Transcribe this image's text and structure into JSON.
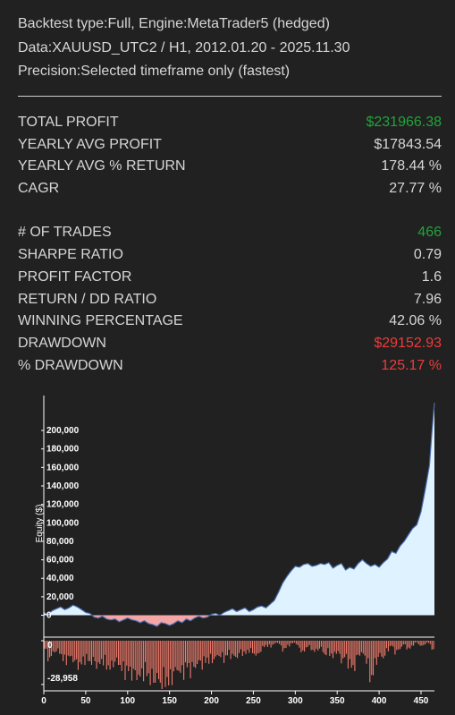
{
  "header": {
    "backtest_line": "Backtest type:Full, Engine:MetaTrader5 (hedged)",
    "data_line": "Data:XAUUSD_UTC2 / H1, 2012.01.20 - 2025.11.30",
    "precision_line": "Precision:Selected timeframe only (fastest)"
  },
  "metrics": {
    "group1": [
      {
        "label": "TOTAL PROFIT",
        "value": "$231966.38",
        "color": "#22a33a"
      },
      {
        "label": "YEARLY AVG PROFIT",
        "value": "$17843.54",
        "color": "#d6d6d6"
      },
      {
        "label": "YEARLY AVG % RETURN",
        "value": "178.44 %",
        "color": "#d6d6d6"
      },
      {
        "label": "CAGR",
        "value": "27.77 %",
        "color": "#d6d6d6"
      }
    ],
    "group2": [
      {
        "label": "# OF TRADES",
        "value": "466",
        "color": "#22a33a"
      },
      {
        "label": "SHARPE RATIO",
        "value": "0.79",
        "color": "#d6d6d6"
      },
      {
        "label": "PROFIT FACTOR",
        "value": "1.6",
        "color": "#d6d6d6"
      },
      {
        "label": "RETURN / DD RATIO",
        "value": "7.96",
        "color": "#d6d6d6"
      },
      {
        "label": "WINNING PERCENTAGE",
        "value": "42.06 %",
        "color": "#d6d6d6"
      },
      {
        "label": "DRAWDOWN",
        "value": "$29152.93",
        "color": "#ee3b3b"
      },
      {
        "label": "% DRAWDOWN",
        "value": "125.17 %",
        "color": "#ee3b3b"
      }
    ]
  },
  "chart_data": {
    "type": "area",
    "ylabel": "Equity ($)",
    "equity_ticks": [
      "0",
      "20,000",
      "40,000",
      "60,000",
      "80,000",
      "100,000",
      "120,000",
      "140,000",
      "160,000",
      "180,000",
      "200,000"
    ],
    "equity_tick_values": [
      0,
      20000,
      40000,
      60000,
      80000,
      100000,
      120000,
      140000,
      160000,
      180000,
      200000
    ],
    "drawdown_ticks": [
      "0",
      "-28,958"
    ],
    "drawdown_tick_values": [
      0,
      -28958
    ],
    "x_ticks": [
      "0",
      "50",
      "100",
      "150",
      "200",
      "250",
      "300",
      "350",
      "400",
      "450"
    ],
    "x_tick_values": [
      0,
      50,
      100,
      150,
      200,
      250,
      300,
      350,
      400,
      450
    ],
    "xlim": [
      0,
      466
    ],
    "equity_ylim": [
      -14000,
      232000
    ],
    "drawdown_ylim": [
      -32000,
      0
    ],
    "equity_series": {
      "name": "Equity",
      "x": [
        0,
        5,
        10,
        15,
        20,
        25,
        30,
        35,
        40,
        45,
        50,
        55,
        60,
        65,
        70,
        75,
        80,
        85,
        90,
        95,
        100,
        105,
        110,
        115,
        120,
        125,
        130,
        135,
        140,
        145,
        150,
        155,
        160,
        165,
        170,
        175,
        180,
        185,
        190,
        195,
        200,
        205,
        210,
        215,
        220,
        225,
        230,
        235,
        240,
        245,
        250,
        255,
        260,
        265,
        270,
        275,
        280,
        285,
        290,
        295,
        300,
        305,
        310,
        315,
        320,
        325,
        330,
        335,
        340,
        345,
        350,
        355,
        360,
        365,
        370,
        375,
        380,
        385,
        390,
        395,
        400,
        405,
        410,
        415,
        420,
        425,
        430,
        435,
        440,
        445,
        450,
        455,
        460,
        463,
        466
      ],
      "values": [
        3000,
        1000,
        5000,
        7000,
        9000,
        6000,
        8000,
        11000,
        9000,
        6000,
        3000,
        2000,
        -2000,
        -3000,
        -1000,
        -4000,
        -5000,
        -4000,
        -7000,
        -5000,
        -3000,
        -5000,
        -6000,
        -8000,
        -6000,
        -9000,
        -10000,
        -12000,
        -8000,
        -9000,
        -11000,
        -9000,
        -6000,
        -8000,
        -4000,
        -6000,
        -3000,
        -1000,
        -3000,
        -2000,
        1000,
        2000,
        0,
        3000,
        5000,
        7000,
        4000,
        6000,
        8000,
        4000,
        6000,
        9000,
        10000,
        8000,
        12000,
        16000,
        25000,
        35000,
        42000,
        48000,
        53000,
        52000,
        55000,
        56000,
        53000,
        54000,
        56000,
        55000,
        57000,
        51000,
        54000,
        56000,
        49000,
        52000,
        50000,
        56000,
        60000,
        56000,
        53000,
        55000,
        52000,
        57000,
        61000,
        69000,
        67000,
        75000,
        80000,
        87000,
        94000,
        98000,
        112000,
        136000,
        162000,
        198000,
        230000
      ]
    },
    "drawdown_series": {
      "name": "Drawdown",
      "x": [
        0,
        5,
        10,
        15,
        20,
        25,
        30,
        35,
        40,
        45,
        50,
        55,
        60,
        65,
        70,
        75,
        80,
        85,
        90,
        95,
        100,
        105,
        110,
        115,
        120,
        125,
        130,
        135,
        140,
        145,
        150,
        155,
        160,
        165,
        170,
        175,
        180,
        185,
        190,
        195,
        200,
        205,
        210,
        215,
        220,
        225,
        230,
        235,
        240,
        245,
        250,
        255,
        260,
        265,
        270,
        275,
        280,
        285,
        290,
        295,
        300,
        305,
        310,
        315,
        320,
        325,
        330,
        335,
        340,
        345,
        350,
        355,
        360,
        365,
        370,
        375,
        380,
        385,
        390,
        395,
        400,
        405,
        410,
        415,
        420,
        425,
        430,
        435,
        440,
        445,
        450,
        455,
        460,
        465
      ],
      "values": [
        -2000,
        -12000,
        -9000,
        -6000,
        -8000,
        -14000,
        -10000,
        -12000,
        -16000,
        -15000,
        -11000,
        -14000,
        -13000,
        -17000,
        -12000,
        -16000,
        -18000,
        -13000,
        -15000,
        -20000,
        -19000,
        -21000,
        -22000,
        -24000,
        -19000,
        -23000,
        -26000,
        -24000,
        -28958,
        -25000,
        -27000,
        -21000,
        -18000,
        -22000,
        -16000,
        -19000,
        -17000,
        -14000,
        -15000,
        -12000,
        -13000,
        -11000,
        -9000,
        -12000,
        -8000,
        -10000,
        -11000,
        -7000,
        -9000,
        -6000,
        -8000,
        -10000,
        -5000,
        -3000,
        -4000,
        -2000,
        -1000,
        -6000,
        -4000,
        -2000,
        -1000,
        -5000,
        -8000,
        -3000,
        -6000,
        -7000,
        -4000,
        -9000,
        -7000,
        -11000,
        -6000,
        -13000,
        -10000,
        -16000,
        -18000,
        -9000,
        -8000,
        -12000,
        -26000,
        -16000,
        -9000,
        -11000,
        -6000,
        -3000,
        -8000,
        -5000,
        -2000,
        -6000,
        -3000,
        -1000,
        -4000,
        -2000,
        -1000,
        -8000
      ]
    }
  },
  "colors": {
    "background": "#212121",
    "positive_fill": "#dff2ff",
    "negative_fill": "#f4a6a6",
    "equity_line": "#4a6fb3",
    "drawdown_fill": "#f07c6c",
    "axis": "#ffffff",
    "green": "#22a33a",
    "red": "#ee3b3b"
  }
}
